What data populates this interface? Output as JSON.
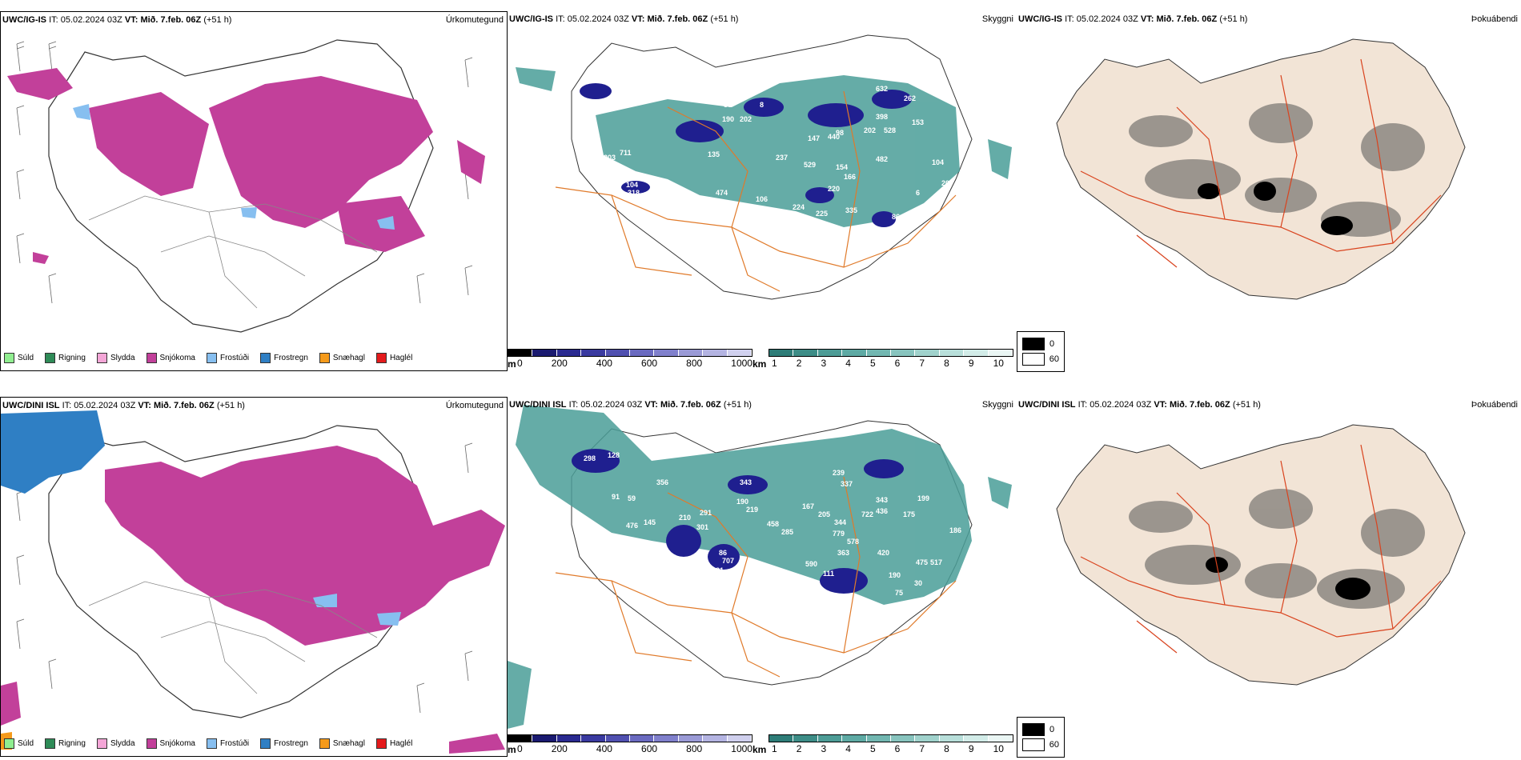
{
  "rows": [
    {
      "type_panel": {
        "model": "UWC/IG-IS",
        "it": "05.02.2024 03Z",
        "vt": "Mið. 7.feb. 06Z",
        "lead": "(+51 h)",
        "title": "Úrkomutegund"
      },
      "cloud_panel": {
        "model": "UWC/IG-IS",
        "it": "05.02.2024 03Z",
        "vt": "Mið. 7.feb. 06Z",
        "lead": "(+51 h)",
        "title": "Skyggni"
      },
      "fog_panel": {
        "model": "UWC/IG-IS",
        "it": "05.02.2024 03Z",
        "vt": "Mið. 7.feb. 06Z",
        "lead": "(+51 h)",
        "title": "Þokuábendi"
      }
    },
    {
      "type_panel": {
        "model": "UWC/DINI ISL",
        "it": "05.02.2024 03Z",
        "vt": "Mið. 7.feb. 06Z",
        "lead": "(+51 h)",
        "title": "Úrkomutegund"
      },
      "cloud_panel": {
        "model": "UWC/DINI ISL",
        "it": "05.02.2024 03Z",
        "vt": "Mið. 7.feb. 06Z",
        "lead": "(+51 h)",
        "title": "Skyggni"
      },
      "fog_panel": {
        "model": "UWC/DINI ISL",
        "it": "05.02.2024 03Z",
        "vt": "Mið. 7.feb. 06Z",
        "lead": "(+51 h)",
        "title": "Þokuábendi"
      }
    }
  ],
  "labels": {
    "it": "IT:",
    "vt": "VT:"
  },
  "precip_legend": [
    {
      "label": "Súld",
      "color": "#90ee90"
    },
    {
      "label": "Rigning",
      "color": "#2e8b57"
    },
    {
      "label": "Slydda",
      "color": "#f4a6d7"
    },
    {
      "label": "Snjókoma",
      "color": "#c2409a"
    },
    {
      "label": "Frostúði",
      "color": "#87bff0"
    },
    {
      "label": "Frostregn",
      "color": "#2f7fc4"
    },
    {
      "label": "Snæhagl",
      "color": "#f59a1a"
    },
    {
      "label": "Haglél",
      "color": "#e41a1c"
    }
  ],
  "ceiling_bar": {
    "unit": "m",
    "ticks": [
      "0",
      "200",
      "400",
      "600",
      "800",
      "1000"
    ]
  },
  "visibility_bar": {
    "unit": "km",
    "ticks": [
      "1",
      "2",
      "3",
      "4",
      "5",
      "6",
      "7",
      "8",
      "9",
      "10"
    ]
  },
  "fog_legend": {
    "high": "0",
    "low": "60"
  },
  "cloud_labels_top": [
    "36",
    "190",
    "202",
    "8",
    "147",
    "440",
    "98",
    "632",
    "262",
    "398",
    "202",
    "528",
    "153",
    "711",
    "203",
    "104",
    "318",
    "333",
    "232",
    "135",
    "237",
    "529",
    "154",
    "166",
    "482",
    "220",
    "106",
    "224",
    "225",
    "335",
    "86",
    "6",
    "104",
    "20",
    "474"
  ],
  "cloud_labels_bottom": [
    "298",
    "128",
    "356",
    "91",
    "59",
    "476",
    "145",
    "210",
    "291",
    "301",
    "343",
    "190",
    "219",
    "167",
    "205",
    "239",
    "337",
    "343",
    "436",
    "175",
    "199",
    "722",
    "344",
    "458",
    "285",
    "779",
    "578",
    "363",
    "420",
    "707",
    "590",
    "111",
    "159",
    "190",
    "75",
    "30",
    "475",
    "517",
    "186",
    "86",
    "81",
    "78"
  ],
  "colors": {
    "snow": "#c2409a",
    "freezing_rain": "#2f7fc4",
    "frost_drizzle": "#87bff0",
    "teal": "#4a9e98",
    "navy": "#1f1f8f",
    "land_fog": "#f2e4d6",
    "road": "#e07a2a",
    "border": "#d9431e"
  }
}
